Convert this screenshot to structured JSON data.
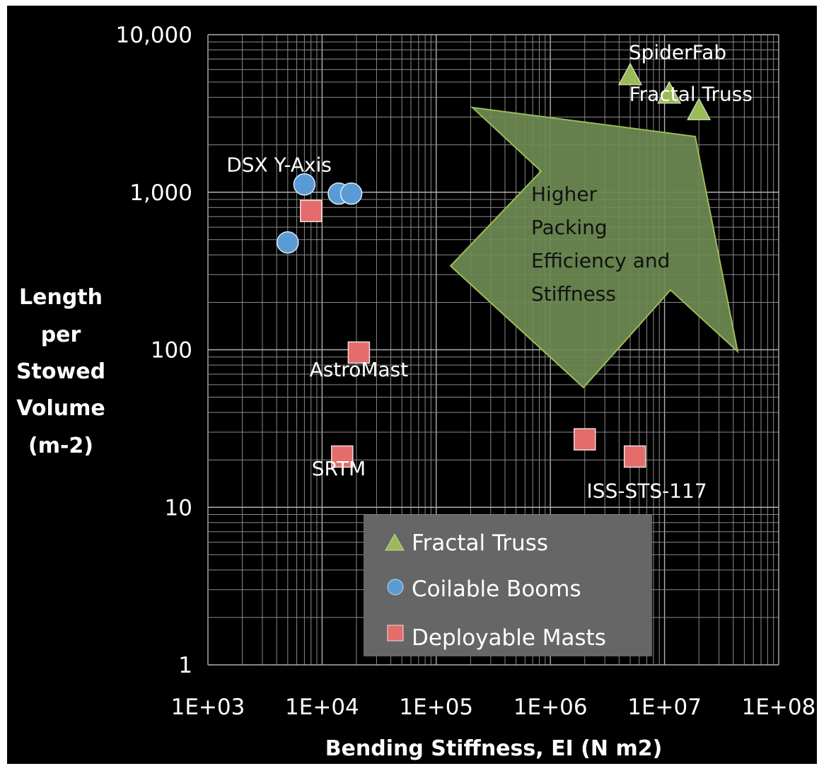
{
  "chart_data": {
    "type": "scatter",
    "xlabel": "Bending Stiffness, EI  (N m2)",
    "ylabel": [
      "Length",
      "per",
      "Stowed",
      "Volume",
      "(m-2)"
    ],
    "xscale": "log",
    "yscale": "log",
    "xlim": [
      1000,
      100000000
    ],
    "ylim": [
      1,
      10000
    ],
    "grid": true,
    "legend_position": "bottom-center",
    "x_tick_labels": [
      "1E+03",
      "1E+04",
      "1E+05",
      "1E+06",
      "1E+07",
      "1E+08"
    ],
    "y_tick_labels": [
      "10,000",
      "1,000",
      "100",
      "10",
      "1"
    ],
    "series": [
      {
        "name": "Fractal Truss",
        "marker": "triangle",
        "color": "#9bbb59",
        "points": [
          {
            "x": 5000000,
            "y": 5500
          },
          {
            "x": 11000000,
            "y": 4200
          },
          {
            "x": 20000000,
            "y": 3300
          }
        ]
      },
      {
        "name": "Coilable Booms",
        "marker": "circle",
        "color": "#5b9bd5",
        "points": [
          {
            "x": 5000,
            "y": 480
          },
          {
            "x": 7000,
            "y": 1120
          },
          {
            "x": 14000,
            "y": 980
          },
          {
            "x": 18000,
            "y": 980
          }
        ]
      },
      {
        "name": "Deployable Masts",
        "marker": "square",
        "color": "#e46c6b",
        "points": [
          {
            "x": 8000,
            "y": 760
          },
          {
            "x": 21000,
            "y": 96
          },
          {
            "x": 15000,
            "y": 21
          },
          {
            "x": 2000000,
            "y": 27
          },
          {
            "x": 5500000,
            "y": 21
          }
        ]
      }
    ],
    "annotations": [
      {
        "text": "SpiderFab",
        "x": 13000000,
        "y": 7000
      },
      {
        "text": "Fractal Truss",
        "x": 17000000,
        "y": 3800
      },
      {
        "text": "DSX Y-Axis",
        "x": 4200,
        "y": 1350
      },
      {
        "text": "AstroMast",
        "x": 21000,
        "y": 68
      },
      {
        "text": "SRTM",
        "x": 14000,
        "y": 16
      },
      {
        "text": "ISS-STS-117",
        "x": 7000000,
        "y": 11.5
      }
    ],
    "arrow_label": [
      "Higher",
      "Packing",
      "Efficiency and",
      "Stiffness"
    ]
  }
}
